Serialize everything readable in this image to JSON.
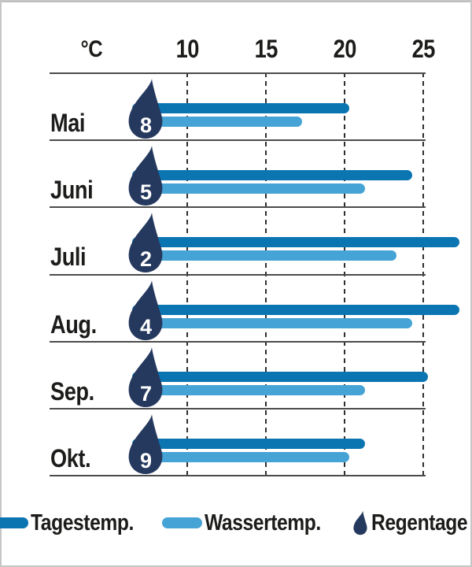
{
  "chart_data": {
    "type": "bar",
    "orientation": "horizontal",
    "unit_label": "°C",
    "axis_ticks": [
      10,
      15,
      20,
      25
    ],
    "axis_range_shown": [
      7,
      25
    ],
    "grid": "dashed-vertical",
    "legend_position": "bottom",
    "categories": [
      "Mai",
      "Juni",
      "Juli",
      "Aug.",
      "Sep.",
      "Okt."
    ],
    "series": [
      {
        "name": "Tagestemp.",
        "kind": "bar",
        "color": "#0b75b2",
        "values": [
          20,
          24,
          27,
          27,
          25,
          21
        ]
      },
      {
        "name": "Wassertemp.",
        "kind": "bar",
        "color": "#45a3d5",
        "values": [
          17,
          21,
          23,
          24,
          21,
          20
        ]
      },
      {
        "name": "Regentage",
        "kind": "drop-badge",
        "color": "#25395f",
        "values": [
          8,
          5,
          2,
          4,
          7,
          9
        ]
      }
    ]
  },
  "legend": {
    "items": [
      {
        "label": "Tagestemp.",
        "swatch": "day-pill"
      },
      {
        "label": "Wassertemp.",
        "swatch": "water-pill"
      },
      {
        "label": "Regentage",
        "swatch": "rain-drop"
      }
    ]
  },
  "colors": {
    "day_temp": "#0b75b2",
    "water_temp": "#45a3d5",
    "rain_drop": "#25395f",
    "text": "#1c1c1a",
    "grid_line": "#2f2f2f",
    "separator_line": "#4b4b4b"
  }
}
